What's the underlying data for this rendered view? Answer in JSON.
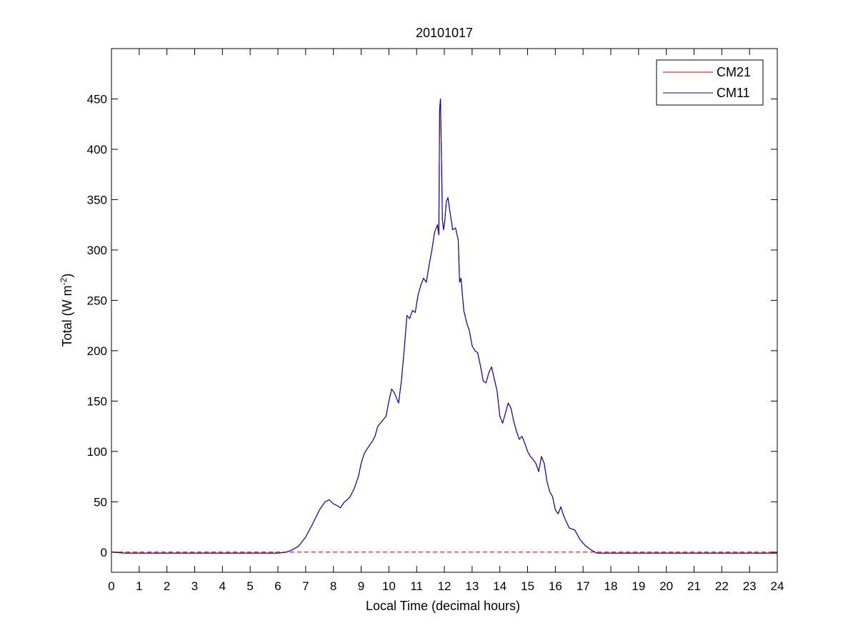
{
  "chart_data": {
    "type": "line",
    "title": "20101017",
    "xlabel": "Local Time (decimal hours)",
    "ylabel_parts": {
      "before": "Total (W m",
      "exponent": "-2",
      "after": ")"
    },
    "xlim": [
      0,
      24
    ],
    "ylim": [
      -20,
      500
    ],
    "x_ticks": [
      "0",
      "1",
      "2",
      "3",
      "4",
      "5",
      "6",
      "7",
      "8",
      "9",
      "10",
      "11",
      "12",
      "13",
      "14",
      "15",
      "16",
      "17",
      "18",
      "19",
      "20",
      "21",
      "22",
      "23",
      "24"
    ],
    "y_ticks": [
      "0",
      "50",
      "100",
      "150",
      "200",
      "250",
      "300",
      "350",
      "400",
      "450"
    ],
    "grid": false,
    "legend_position": "top-right",
    "zero_line": {
      "y": 0,
      "color": "#cc0000",
      "style": "dashed"
    },
    "series": [
      {
        "name": "CM21",
        "color": "#cc0000",
        "x": [
          0,
          0.5,
          1,
          1.5,
          2,
          2.5,
          3,
          3.5,
          4,
          4.5,
          5,
          5.5,
          6,
          6.3,
          6.5,
          6.75,
          7,
          7.25,
          7.5,
          7.7,
          7.85,
          8,
          8.15,
          8.25,
          8.4,
          8.5,
          8.6,
          8.75,
          8.9,
          9,
          9.1,
          9.2,
          9.3,
          9.4,
          9.5,
          9.6,
          9.75,
          9.9,
          10,
          10.1,
          10.2,
          10.35,
          10.45,
          10.55,
          10.65,
          10.75,
          10.85,
          10.95,
          11.05,
          11.15,
          11.25,
          11.35,
          11.45,
          11.55,
          11.65,
          11.75,
          11.8,
          11.83,
          11.86,
          11.9,
          11.93,
          11.97,
          12.02,
          12.07,
          12.13,
          12.2,
          12.3,
          12.4,
          12.5,
          12.55,
          12.6,
          12.7,
          12.8,
          12.9,
          13,
          13.1,
          13.2,
          13.3,
          13.4,
          13.5,
          13.6,
          13.7,
          13.8,
          13.9,
          14,
          14.1,
          14.2,
          14.3,
          14.4,
          14.5,
          14.6,
          14.7,
          14.8,
          14.9,
          15,
          15.1,
          15.2,
          15.3,
          15.4,
          15.5,
          15.6,
          15.7,
          15.8,
          15.9,
          16,
          16.1,
          16.2,
          16.3,
          16.5,
          16.7,
          16.9,
          17.1,
          17.3,
          17.5,
          17.7,
          18,
          18.5,
          19,
          19.5,
          20,
          20.5,
          21,
          21.5,
          22,
          22.5,
          23,
          23.5,
          24
        ],
        "y": [
          0,
          -1,
          -1,
          -1,
          -1,
          -1,
          -1,
          -1,
          -1,
          -1,
          -1,
          -1,
          -1,
          0,
          2,
          6,
          15,
          28,
          42,
          50,
          52,
          48,
          46,
          44,
          50,
          52,
          55,
          63,
          75,
          88,
          97,
          102,
          106,
          110,
          115,
          125,
          130,
          135,
          150,
          162,
          158,
          148,
          170,
          200,
          235,
          232,
          240,
          238,
          255,
          265,
          272,
          268,
          285,
          300,
          318,
          325,
          315,
          440,
          450,
          385,
          330,
          320,
          330,
          348,
          352,
          338,
          320,
          322,
          310,
          268,
          272,
          240,
          228,
          220,
          205,
          200,
          198,
          185,
          170,
          168,
          178,
          184,
          172,
          160,
          135,
          128,
          138,
          148,
          143,
          130,
          120,
          112,
          115,
          108,
          100,
          95,
          92,
          88,
          80,
          95,
          88,
          70,
          60,
          55,
          42,
          38,
          45,
          36,
          24,
          22,
          12,
          6,
          2,
          -1,
          -1,
          -1,
          -1,
          -1,
          -1,
          -1,
          -1,
          -1,
          -1,
          -1,
          -1,
          -1,
          -1,
          -1
        ]
      },
      {
        "name": "CM11",
        "color": "#0000cc",
        "x": [
          0,
          0.5,
          1,
          1.5,
          2,
          2.5,
          3,
          3.5,
          4,
          4.5,
          5,
          5.5,
          6,
          6.3,
          6.5,
          6.75,
          7,
          7.25,
          7.5,
          7.7,
          7.85,
          8,
          8.15,
          8.25,
          8.4,
          8.5,
          8.6,
          8.75,
          8.9,
          9,
          9.1,
          9.2,
          9.3,
          9.4,
          9.5,
          9.6,
          9.75,
          9.9,
          10,
          10.1,
          10.2,
          10.35,
          10.45,
          10.55,
          10.65,
          10.75,
          10.85,
          10.95,
          11.05,
          11.15,
          11.25,
          11.35,
          11.45,
          11.55,
          11.65,
          11.75,
          11.8,
          11.83,
          11.86,
          11.9,
          11.93,
          11.97,
          12.02,
          12.07,
          12.13,
          12.2,
          12.3,
          12.4,
          12.5,
          12.55,
          12.6,
          12.7,
          12.8,
          12.9,
          13,
          13.1,
          13.2,
          13.3,
          13.4,
          13.5,
          13.6,
          13.7,
          13.8,
          13.9,
          14,
          14.1,
          14.2,
          14.3,
          14.4,
          14.5,
          14.6,
          14.7,
          14.8,
          14.9,
          15,
          15.1,
          15.2,
          15.3,
          15.4,
          15.5,
          15.6,
          15.7,
          15.8,
          15.9,
          16,
          16.1,
          16.2,
          16.3,
          16.5,
          16.7,
          16.9,
          17.1,
          17.3,
          17.5,
          17.7,
          18,
          18.5,
          19,
          19.5,
          20,
          20.5,
          21,
          21.5,
          22,
          22.5,
          23,
          23.5,
          24
        ],
        "y": [
          0,
          -1,
          -1,
          -1,
          -1,
          -1,
          -1,
          -1,
          -1,
          -1,
          -1,
          -1,
          -1,
          0,
          2,
          6,
          15,
          28,
          42,
          50,
          52,
          48,
          46,
          44,
          50,
          52,
          55,
          63,
          75,
          88,
          97,
          102,
          106,
          110,
          115,
          125,
          130,
          135,
          150,
          162,
          158,
          148,
          170,
          200,
          235,
          232,
          240,
          238,
          255,
          265,
          272,
          268,
          285,
          300,
          318,
          325,
          315,
          440,
          450,
          385,
          330,
          320,
          330,
          348,
          352,
          338,
          320,
          322,
          310,
          268,
          272,
          240,
          228,
          220,
          205,
          200,
          198,
          185,
          170,
          168,
          178,
          184,
          172,
          160,
          135,
          128,
          138,
          148,
          143,
          130,
          120,
          112,
          115,
          108,
          100,
          95,
          92,
          88,
          80,
          95,
          88,
          70,
          60,
          55,
          42,
          38,
          45,
          36,
          24,
          22,
          12,
          6,
          2,
          -1,
          -1,
          -1,
          -1,
          -1,
          -1,
          -1,
          -1,
          -1,
          -1,
          -1,
          -1,
          -1,
          -1,
          -1
        ]
      }
    ]
  }
}
